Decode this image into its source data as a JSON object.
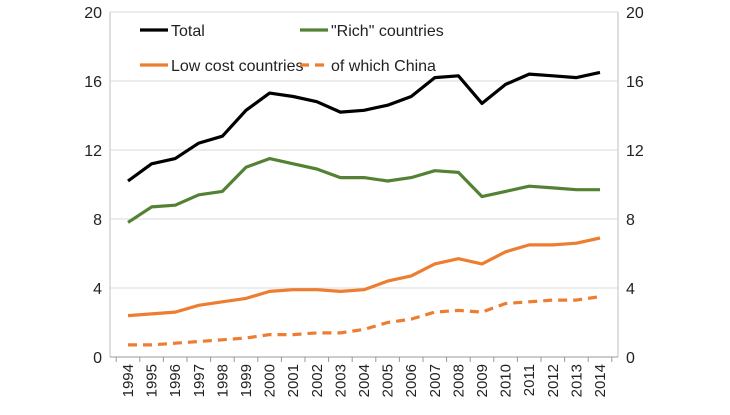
{
  "chart_data": {
    "type": "line",
    "title": "",
    "xlabel": "",
    "ylabel": "",
    "x": [
      "1994",
      "1995",
      "1996",
      "1997",
      "1998",
      "1999",
      "2000",
      "2001",
      "2002",
      "2003",
      "2004",
      "2005",
      "2006",
      "2007",
      "2008",
      "2009",
      "2010",
      "2011",
      "2012",
      "2013",
      "2014"
    ],
    "ylim": [
      0,
      20
    ],
    "yticks": [
      "0",
      "4",
      "8",
      "12",
      "16",
      "20"
    ],
    "grid": true,
    "secondary_axis_mirrored": true,
    "legend_position": "top",
    "series": [
      {
        "name": "Total",
        "color": "#000000",
        "dash": false,
        "values": [
          10.2,
          11.2,
          11.5,
          12.4,
          12.8,
          14.3,
          15.3,
          15.1,
          14.8,
          14.2,
          14.3,
          14.6,
          15.1,
          16.2,
          16.3,
          14.7,
          15.8,
          16.4,
          16.3,
          16.2,
          16.5
        ]
      },
      {
        "name": "\"Rich\" countries",
        "color": "#548235",
        "dash": false,
        "values": [
          7.8,
          8.7,
          8.8,
          9.4,
          9.6,
          11.0,
          11.5,
          11.2,
          10.9,
          10.4,
          10.4,
          10.2,
          10.4,
          10.8,
          10.7,
          9.3,
          9.6,
          9.9,
          9.8,
          9.7,
          9.7
        ]
      },
      {
        "name": "Low cost countries",
        "color": "#ED7D31",
        "dash": false,
        "values": [
          2.4,
          2.5,
          2.6,
          3.0,
          3.2,
          3.4,
          3.8,
          3.9,
          3.9,
          3.8,
          3.9,
          4.4,
          4.7,
          5.4,
          5.7,
          5.4,
          6.1,
          6.5,
          6.5,
          6.6,
          6.9
        ]
      },
      {
        "name": "of which China",
        "color": "#ED7D31",
        "dash": true,
        "values": [
          0.7,
          0.7,
          0.8,
          0.9,
          1.0,
          1.1,
          1.3,
          1.3,
          1.4,
          1.4,
          1.6,
          2.0,
          2.2,
          2.6,
          2.7,
          2.6,
          3.1,
          3.2,
          3.3,
          3.3,
          3.5
        ]
      }
    ]
  }
}
